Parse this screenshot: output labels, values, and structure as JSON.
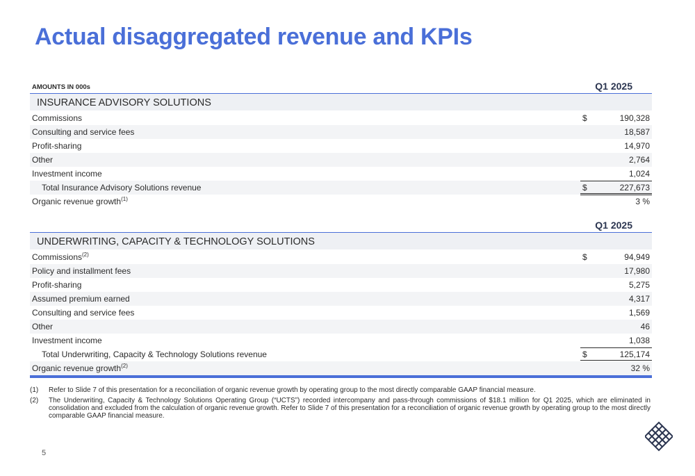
{
  "title": "Actual disaggregated revenue and KPIs",
  "amounts_label": "AMOUNTS IN 000s",
  "ias": {
    "column": "Q1 2025",
    "band": "INSURANCE ADVISORY SOLUTIONS",
    "rows": [
      {
        "label": "Commissions",
        "sup": "",
        "dollar": "$",
        "value": "190,328"
      },
      {
        "label": "Consulting and service fees",
        "sup": "",
        "dollar": "",
        "value": "18,587"
      },
      {
        "label": "Profit-sharing",
        "sup": "",
        "dollar": "",
        "value": "14,970"
      },
      {
        "label": "Other",
        "sup": "",
        "dollar": "",
        "value": "2,764"
      },
      {
        "label": "Investment income",
        "sup": "",
        "dollar": "",
        "value": "1,024"
      }
    ],
    "total": {
      "label": "Total Insurance Advisory Solutions revenue",
      "dollar": "$",
      "value": "227,673"
    },
    "organic": {
      "label": "Organic revenue growth",
      "sup": "(1)",
      "value": "3 %"
    }
  },
  "ucts": {
    "column": "Q1 2025",
    "band": "UNDERWRITING, CAPACITY & TECHNOLOGY SOLUTIONS",
    "rows": [
      {
        "label": "Commissions",
        "sup": "(2)",
        "dollar": "$",
        "value": "94,949"
      },
      {
        "label": "Policy and installment fees",
        "sup": "",
        "dollar": "",
        "value": "17,980"
      },
      {
        "label": "Profit-sharing",
        "sup": "",
        "dollar": "",
        "value": "5,275"
      },
      {
        "label": "Assumed premium earned",
        "sup": "",
        "dollar": "",
        "value": "4,317"
      },
      {
        "label": "Consulting and service fees",
        "sup": "",
        "dollar": "",
        "value": "1,569"
      },
      {
        "label": "Other",
        "sup": "",
        "dollar": "",
        "value": "46"
      },
      {
        "label": "Investment income",
        "sup": "",
        "dollar": "",
        "value": "1,038"
      }
    ],
    "total": {
      "label": "Total Underwriting, Capacity & Technology Solutions revenue",
      "dollar": "$",
      "value": "125,174"
    },
    "organic": {
      "label": "Organic revenue growth",
      "sup": "(2)",
      "value": "32 %"
    }
  },
  "footnotes": [
    {
      "num": "(1)",
      "text": "Refer to Slide 7 of this presentation for a reconciliation of organic revenue growth by operating group to the most directly comparable GAAP financial measure."
    },
    {
      "num": "(2)",
      "text": "The Underwriting, Capacity & Technology Solutions Operating Group (“UCTS”) recorded intercompany and pass-through commissions of $18.1 million for Q1 2025, which are eliminated in consolidation and excluded from the calculation of organic revenue growth. Refer to Slide 7 of this presentation for a reconciliation of organic revenue growth by operating group to the most directly comparable GAAP financial measure."
    }
  ],
  "page_number": "5",
  "logo": {
    "icon": "company-logo-icon",
    "color": "#2b3550"
  },
  "colors": {
    "accent": "#4a6fd8",
    "band": "#eef0f4"
  }
}
